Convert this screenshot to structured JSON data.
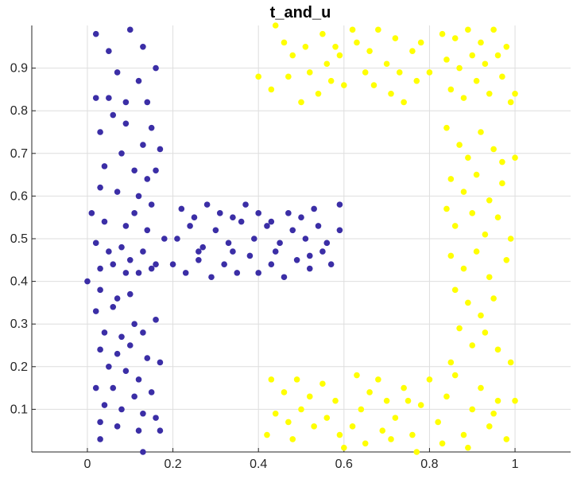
{
  "chart_data": {
    "type": "scatter",
    "title": "t_and_u",
    "xlabel": "",
    "ylabel": "",
    "xlim": [
      -0.13,
      1.13
    ],
    "ylim": [
      0,
      1
    ],
    "grid": true,
    "legend": "none",
    "x_ticks": [
      0,
      0.2,
      0.4,
      0.6,
      0.8,
      1
    ],
    "x_tick_labels": [
      "0",
      "0.2",
      "0.4",
      "0.6",
      "0.8",
      "1"
    ],
    "y_ticks": [
      0.1,
      0.2,
      0.3,
      0.4,
      0.5,
      0.6,
      0.7,
      0.8,
      0.9
    ],
    "y_tick_labels": [
      "0.1",
      "0.2",
      "0.3",
      "0.4",
      "0.5",
      "0.6",
      "0.7",
      "0.8",
      "0.9"
    ],
    "series": [
      {
        "color": "#3b2ea6",
        "points": [
          [
            0.02,
            0.98
          ],
          [
            0.05,
            0.94
          ],
          [
            0.1,
            0.99
          ],
          [
            0.13,
            0.95
          ],
          [
            0.16,
            0.9
          ],
          [
            0.07,
            0.89
          ],
          [
            0.02,
            0.83
          ],
          [
            0.05,
            0.83
          ],
          [
            0.09,
            0.82
          ],
          [
            0.12,
            0.87
          ],
          [
            0.14,
            0.82
          ],
          [
            0.03,
            0.75
          ],
          [
            0.06,
            0.79
          ],
          [
            0.09,
            0.77
          ],
          [
            0.13,
            0.72
          ],
          [
            0.15,
            0.76
          ],
          [
            0.17,
            0.71
          ],
          [
            0.04,
            0.67
          ],
          [
            0.08,
            0.7
          ],
          [
            0.11,
            0.66
          ],
          [
            0.14,
            0.64
          ],
          [
            0.16,
            0.66
          ],
          [
            0.03,
            0.62
          ],
          [
            0.07,
            0.61
          ],
          [
            0.12,
            0.6
          ],
          [
            0.15,
            0.58
          ],
          [
            0.01,
            0.56
          ],
          [
            0.04,
            0.54
          ],
          [
            0.09,
            0.53
          ],
          [
            0.11,
            0.56
          ],
          [
            0.14,
            0.52
          ],
          [
            0.18,
            0.5
          ],
          [
            0.02,
            0.49
          ],
          [
            0.05,
            0.47
          ],
          [
            0.08,
            0.48
          ],
          [
            0.1,
            0.45
          ],
          [
            0.13,
            0.47
          ],
          [
            0.16,
            0.44
          ],
          [
            0.03,
            0.43
          ],
          [
            0.06,
            0.44
          ],
          [
            0.09,
            0.42
          ],
          [
            0.12,
            0.42
          ],
          [
            0.15,
            0.43
          ],
          [
            0.0,
            0.4
          ],
          [
            0.03,
            0.38
          ],
          [
            0.07,
            0.36
          ],
          [
            0.1,
            0.37
          ],
          [
            0.02,
            0.33
          ],
          [
            0.06,
            0.34
          ],
          [
            0.11,
            0.3
          ],
          [
            0.04,
            0.28
          ],
          [
            0.08,
            0.27
          ],
          [
            0.13,
            0.28
          ],
          [
            0.16,
            0.31
          ],
          [
            0.03,
            0.24
          ],
          [
            0.07,
            0.23
          ],
          [
            0.1,
            0.25
          ],
          [
            0.14,
            0.22
          ],
          [
            0.17,
            0.21
          ],
          [
            0.05,
            0.2
          ],
          [
            0.09,
            0.19
          ],
          [
            0.12,
            0.17
          ],
          [
            0.02,
            0.15
          ],
          [
            0.06,
            0.15
          ],
          [
            0.11,
            0.13
          ],
          [
            0.15,
            0.14
          ],
          [
            0.04,
            0.11
          ],
          [
            0.08,
            0.1
          ],
          [
            0.13,
            0.09
          ],
          [
            0.16,
            0.08
          ],
          [
            0.03,
            0.07
          ],
          [
            0.07,
            0.06
          ],
          [
            0.12,
            0.05
          ],
          [
            0.17,
            0.05
          ],
          [
            0.03,
            0.03
          ],
          [
            0.13,
            0.0
          ],
          [
            0.2,
            0.44
          ],
          [
            0.23,
            0.42
          ],
          [
            0.26,
            0.45
          ],
          [
            0.29,
            0.41
          ],
          [
            0.32,
            0.44
          ],
          [
            0.35,
            0.42
          ],
          [
            0.38,
            0.46
          ],
          [
            0.4,
            0.42
          ],
          [
            0.43,
            0.44
          ],
          [
            0.46,
            0.41
          ],
          [
            0.49,
            0.45
          ],
          [
            0.52,
            0.43
          ],
          [
            0.55,
            0.47
          ],
          [
            0.57,
            0.44
          ],
          [
            0.21,
            0.5
          ],
          [
            0.24,
            0.53
          ],
          [
            0.27,
            0.48
          ],
          [
            0.3,
            0.52
          ],
          [
            0.33,
            0.49
          ],
          [
            0.36,
            0.54
          ],
          [
            0.39,
            0.5
          ],
          [
            0.42,
            0.53
          ],
          [
            0.45,
            0.49
          ],
          [
            0.48,
            0.52
          ],
          [
            0.51,
            0.5
          ],
          [
            0.54,
            0.53
          ],
          [
            0.56,
            0.49
          ],
          [
            0.59,
            0.52
          ],
          [
            0.22,
            0.57
          ],
          [
            0.25,
            0.55
          ],
          [
            0.28,
            0.58
          ],
          [
            0.31,
            0.56
          ],
          [
            0.34,
            0.55
          ],
          [
            0.37,
            0.58
          ],
          [
            0.4,
            0.56
          ],
          [
            0.43,
            0.54
          ],
          [
            0.47,
            0.56
          ],
          [
            0.5,
            0.55
          ],
          [
            0.53,
            0.57
          ],
          [
            0.59,
            0.58
          ],
          [
            0.26,
            0.47
          ],
          [
            0.34,
            0.47
          ],
          [
            0.44,
            0.47
          ],
          [
            0.52,
            0.46
          ]
        ]
      },
      {
        "color": "#ffff00",
        "points": [
          [
            0.4,
            0.88
          ],
          [
            0.43,
            0.85
          ],
          [
            0.44,
            1.0
          ],
          [
            0.46,
            0.96
          ],
          [
            0.47,
            0.88
          ],
          [
            0.48,
            0.93
          ],
          [
            0.5,
            0.82
          ],
          [
            0.51,
            0.95
          ],
          [
            0.52,
            0.89
          ],
          [
            0.54,
            0.84
          ],
          [
            0.55,
            0.98
          ],
          [
            0.56,
            0.91
          ],
          [
            0.57,
            0.87
          ],
          [
            0.58,
            0.95
          ],
          [
            0.59,
            0.93
          ],
          [
            0.6,
            0.86
          ],
          [
            0.62,
            0.99
          ],
          [
            0.63,
            0.96
          ],
          [
            0.65,
            0.89
          ],
          [
            0.66,
            0.94
          ],
          [
            0.67,
            0.86
          ],
          [
            0.68,
            0.99
          ],
          [
            0.7,
            0.91
          ],
          [
            0.71,
            0.84
          ],
          [
            0.72,
            0.97
          ],
          [
            0.73,
            0.89
          ],
          [
            0.74,
            0.82
          ],
          [
            0.76,
            0.94
          ],
          [
            0.77,
            0.87
          ],
          [
            0.78,
            0.96
          ],
          [
            0.8,
            0.89
          ],
          [
            0.83,
            0.98
          ],
          [
            0.84,
            0.92
          ],
          [
            0.85,
            0.85
          ],
          [
            0.86,
            0.97
          ],
          [
            0.87,
            0.9
          ],
          [
            0.88,
            0.83
          ],
          [
            0.89,
            0.99
          ],
          [
            0.9,
            0.93
          ],
          [
            0.91,
            0.87
          ],
          [
            0.92,
            0.96
          ],
          [
            0.93,
            0.91
          ],
          [
            0.94,
            0.84
          ],
          [
            0.95,
            0.99
          ],
          [
            0.96,
            0.93
          ],
          [
            0.97,
            0.88
          ],
          [
            0.98,
            0.95
          ],
          [
            0.99,
            0.82
          ],
          [
            1.0,
            0.84
          ],
          [
            0.84,
            0.76
          ],
          [
            0.87,
            0.72
          ],
          [
            0.89,
            0.69
          ],
          [
            0.92,
            0.75
          ],
          [
            0.95,
            0.71
          ],
          [
            0.97,
            0.68
          ],
          [
            1.0,
            0.69
          ],
          [
            0.85,
            0.64
          ],
          [
            0.88,
            0.61
          ],
          [
            0.91,
            0.65
          ],
          [
            0.94,
            0.59
          ],
          [
            0.97,
            0.63
          ],
          [
            0.84,
            0.57
          ],
          [
            0.86,
            0.53
          ],
          [
            0.9,
            0.56
          ],
          [
            0.93,
            0.51
          ],
          [
            0.96,
            0.55
          ],
          [
            0.99,
            0.5
          ],
          [
            0.85,
            0.46
          ],
          [
            0.88,
            0.43
          ],
          [
            0.91,
            0.47
          ],
          [
            0.94,
            0.41
          ],
          [
            0.98,
            0.45
          ],
          [
            0.86,
            0.38
          ],
          [
            0.89,
            0.35
          ],
          [
            0.92,
            0.32
          ],
          [
            0.95,
            0.36
          ],
          [
            0.87,
            0.29
          ],
          [
            0.9,
            0.25
          ],
          [
            0.93,
            0.28
          ],
          [
            0.96,
            0.24
          ],
          [
            0.99,
            0.21
          ],
          [
            0.85,
            0.21
          ],
          [
            0.43,
            0.17
          ],
          [
            0.46,
            0.14
          ],
          [
            0.49,
            0.17
          ],
          [
            0.52,
            0.13
          ],
          [
            0.55,
            0.16
          ],
          [
            0.58,
            0.12
          ],
          [
            0.44,
            0.09
          ],
          [
            0.47,
            0.07
          ],
          [
            0.5,
            0.1
          ],
          [
            0.53,
            0.06
          ],
          [
            0.56,
            0.08
          ],
          [
            0.59,
            0.04
          ],
          [
            0.42,
            0.04
          ],
          [
            0.48,
            0.03
          ],
          [
            0.6,
            0.01
          ],
          [
            0.62,
            0.06
          ],
          [
            0.64,
            0.1
          ],
          [
            0.66,
            0.14
          ],
          [
            0.68,
            0.17
          ],
          [
            0.7,
            0.12
          ],
          [
            0.72,
            0.08
          ],
          [
            0.74,
            0.15
          ],
          [
            0.76,
            0.04
          ],
          [
            0.78,
            0.11
          ],
          [
            0.8,
            0.17
          ],
          [
            0.82,
            0.07
          ],
          [
            0.84,
            0.13
          ],
          [
            0.86,
            0.18
          ],
          [
            0.88,
            0.04
          ],
          [
            0.9,
            0.1
          ],
          [
            0.92,
            0.15
          ],
          [
            0.94,
            0.06
          ],
          [
            0.96,
            0.12
          ],
          [
            0.98,
            0.03
          ],
          [
            0.65,
            0.02
          ],
          [
            0.71,
            0.03
          ],
          [
            0.77,
            0.0
          ],
          [
            0.83,
            0.02
          ],
          [
            0.89,
            0.01
          ],
          [
            0.95,
            0.09
          ],
          [
            1.0,
            0.12
          ],
          [
            0.63,
            0.18
          ],
          [
            0.69,
            0.05
          ],
          [
            0.75,
            0.12
          ]
        ]
      }
    ]
  }
}
